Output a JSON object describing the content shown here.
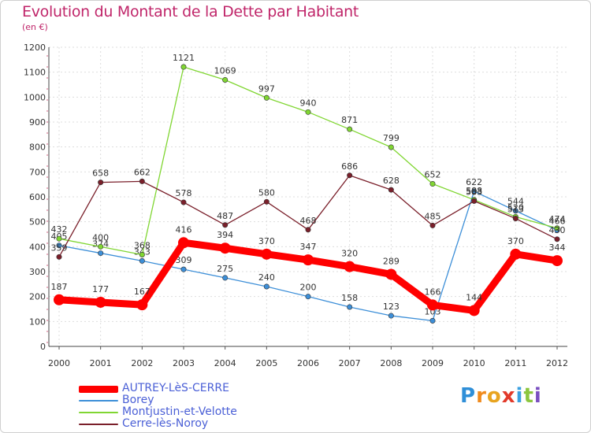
{
  "chart_data": {
    "type": "line",
    "title": "Evolution du Montant de la Dette par Habitant",
    "subtitle": "(en €)",
    "xlabel": "",
    "ylabel": "",
    "categories": [
      "2000",
      "2001",
      "2002",
      "2003",
      "2004",
      "2005",
      "2006",
      "2007",
      "2008",
      "2009",
      "2010",
      "2011",
      "2012"
    ],
    "yticks": [
      0,
      100,
      200,
      300,
      400,
      500,
      600,
      700,
      800,
      900,
      1000,
      1100,
      1200
    ],
    "ylim": [
      0,
      1200
    ],
    "grid": true,
    "series": [
      {
        "name": "AUTREY-LèS-CERRE",
        "color": "#ff0000",
        "values": [
          187,
          177,
          167,
          416,
          394,
          370,
          347,
          320,
          289,
          166,
          144,
          370,
          344
        ]
      },
      {
        "name": "Borey",
        "color": "#3d8fd8",
        "values": [
          405,
          374,
          343,
          309,
          275,
          240,
          200,
          158,
          123,
          103,
          622,
          544,
          466
        ]
      },
      {
        "name": "Montjustin-et-Velotte",
        "color": "#80d632",
        "values": [
          432,
          400,
          368,
          1121,
          1069,
          997,
          940,
          871,
          799,
          652,
          588,
          520,
          474
        ]
      },
      {
        "name": "Cerre-lès-Noroy",
        "color": "#7a1f2a",
        "values": [
          359,
          658,
          662,
          578,
          487,
          580,
          468,
          686,
          628,
          485,
          583,
          513,
          430
        ]
      }
    ]
  },
  "logo": {
    "text": "Proxiti",
    "colors": [
      "#2f8fd8",
      "#f08a1c",
      "#e8a420",
      "#e23a2a",
      "#3aa0e0",
      "#8cc63e",
      "#7a4fc0"
    ]
  }
}
